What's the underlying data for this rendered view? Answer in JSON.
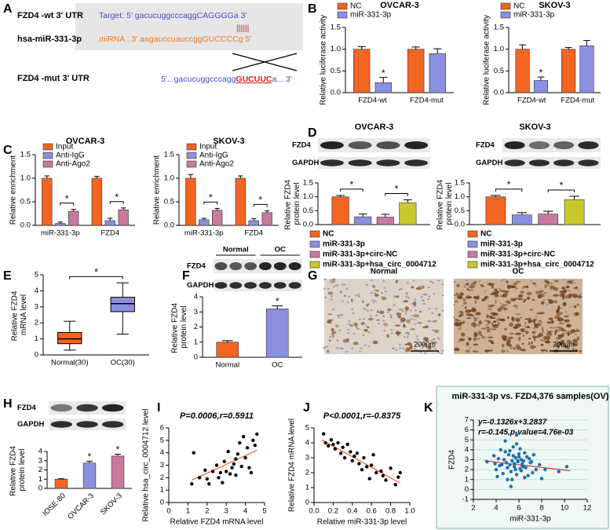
{
  "letters": [
    "A",
    "B",
    "C",
    "D",
    "E",
    "F",
    "G",
    "H",
    "I",
    "J",
    "K"
  ],
  "panel_a": {
    "labels": [
      "FZD4 -wt   3' UTR",
      "hsa-miR-331-3p",
      "FZD4 -mut  3' UTR"
    ],
    "target": "Target: 5'  gacucuggcccaggCAGGGGa 3'",
    "pairing": "||||||",
    "mirna": "miRNA : 3'  aagauccuauccggGUCCCCg 5'",
    "mut_prefix": "5'...gacucuggcccagg",
    "mut_red": "GUCUUC",
    "mut_suffix": "a... 3'"
  },
  "blots": [
    {
      "rows": [
        "FZD4",
        "GAPDH"
      ]
    },
    {
      "rows": [
        "FZD4",
        "GAPDH"
      ]
    },
    {
      "rows": [
        "FZD4",
        "GAPDH"
      ],
      "groups": [
        "Normal",
        "OC"
      ]
    },
    {
      "rows": [
        "FZD4",
        "GAPDH"
      ]
    }
  ],
  "ihc": {
    "labels": [
      "Normal",
      "OC"
    ],
    "scale": "200μm"
  },
  "chart_data": [
    {
      "type": "bar",
      "title": "OVCAR-3",
      "ylabel": "Relative luciferase activity",
      "categories": [
        "FZD4-wt",
        "FZD4-mut"
      ],
      "series": [
        {
          "name": "NC",
          "color": "#f26522",
          "values": [
            1.0,
            1.0
          ],
          "errors": [
            0.06,
            0.05
          ]
        },
        {
          "name": "miR-331-3p",
          "color": "#8b8fe0",
          "values": [
            0.23,
            0.9
          ],
          "errors": [
            0.12,
            0.11
          ]
        }
      ],
      "ylim": [
        0,
        1.5
      ],
      "yticks": [
        {
          "value": 0,
          "label": "0.0"
        },
        0.5,
        {
          "value": 1,
          "label": "1.0"
        },
        1.5
      ],
      "legend": "upper left",
      "stars": [
        {
          "label": "*",
          "series": 1,
          "category": 0
        }
      ]
    },
    {
      "type": "bar",
      "title": "SKOV-3",
      "ylabel": "Relative luciferase activity",
      "categories": [
        "FZD4-wt",
        "FZD4-mut"
      ],
      "series": [
        {
          "name": "NC",
          "color": "#f26522",
          "values": [
            1.0,
            1.0
          ],
          "errors": [
            0.1,
            0.04
          ]
        },
        {
          "name": "miR-331-3p",
          "color": "#8b8fe0",
          "values": [
            0.28,
            1.08
          ],
          "errors": [
            0.08,
            0.12
          ]
        }
      ],
      "ylim": [
        0,
        1.5
      ],
      "yticks": [
        {
          "value": 0,
          "label": "0.0"
        },
        0.5,
        {
          "value": 1,
          "label": "1.0"
        },
        1.5
      ],
      "legend": "upper left",
      "stars": [
        {
          "label": "*",
          "series": 1,
          "category": 0
        }
      ]
    },
    {
      "type": "bar",
      "title": "OVCAR-3",
      "ylabel": "Relative enrichment",
      "categories": [
        "miR-331-3p",
        "FZD4"
      ],
      "series": [
        {
          "name": "Input",
          "color": "#f26522",
          "values": [
            1.0,
            1.0
          ],
          "errors": [
            0.05,
            0.04
          ]
        },
        {
          "name": "Anti-IgG",
          "color": "#8b8fe0",
          "values": [
            0.04,
            0.1
          ],
          "errors": [
            0.03,
            0.05
          ]
        },
        {
          "name": "Anti-Ago2",
          "color": "#c7799e",
          "values": [
            0.3,
            0.33
          ],
          "errors": [
            0.04,
            0.04
          ]
        }
      ],
      "ylim": [
        0,
        1.5
      ],
      "yticks": [
        {
          "value": 0,
          "label": "0.0"
        },
        0.5,
        {
          "value": 1,
          "label": "1.0"
        },
        1.5
      ],
      "legend": "upper left",
      "brackets": [
        {
          "label": "*",
          "from": [
            1,
            0
          ],
          "to": [
            2,
            0
          ]
        },
        {
          "label": "*",
          "from": [
            1,
            1
          ],
          "to": [
            2,
            1
          ]
        }
      ]
    },
    {
      "type": "bar",
      "title": "SKOV-3",
      "ylabel": "Relative enrichment",
      "categories": [
        "miR-331-3p",
        "FZD4"
      ],
      "series": [
        {
          "name": "Input",
          "color": "#f26522",
          "values": [
            1.0,
            1.0
          ],
          "errors": [
            0.08,
            0.05
          ]
        },
        {
          "name": "Anti-IgG",
          "color": "#8b8fe0",
          "values": [
            0.12,
            0.1
          ],
          "errors": [
            0.03,
            0.04
          ]
        },
        {
          "name": "Anti-Ago2",
          "color": "#c7799e",
          "values": [
            0.32,
            0.27
          ],
          "errors": [
            0.04,
            0.04
          ]
        }
      ],
      "ylim": [
        0,
        1.5
      ],
      "yticks": [
        {
          "value": 0,
          "label": "0.0"
        },
        0.5,
        {
          "value": 1,
          "label": "1.0"
        },
        1.5
      ],
      "legend": "upper left",
      "brackets": [
        {
          "label": "*",
          "from": [
            1,
            0
          ],
          "to": [
            2,
            0
          ]
        },
        {
          "label": "*",
          "from": [
            1,
            1
          ],
          "to": [
            2,
            1
          ]
        }
      ]
    },
    {
      "type": "bar",
      "title": "OVCAR-3",
      "ylabel": "Relative FZD4 protein level",
      "categories": [
        null
      ],
      "series": [
        {
          "name": "NC",
          "color": "#f26522",
          "values": [
            1.0
          ],
          "errors": [
            0.05
          ]
        },
        {
          "name": "miR-331-3p",
          "color": "#8b8fe0",
          "values": [
            0.28
          ],
          "errors": [
            0.1
          ]
        },
        {
          "name": "miR-331-3p+circ-NC",
          "color": "#c7799e",
          "values": [
            0.27
          ],
          "errors": [
            0.1
          ]
        },
        {
          "name": "miR-331-3p+hsa_circ_0004712",
          "color": "#c9c92e",
          "values": [
            0.79
          ],
          "errors": [
            0.1
          ]
        }
      ],
      "ylim": [
        0,
        1.5
      ],
      "yticks": [
        {
          "value": 0,
          "label": "0.0"
        },
        0.5,
        {
          "value": 1,
          "label": "1.0"
        },
        1.5
      ],
      "legend": "bottom",
      "brackets": [
        {
          "label": "*",
          "from": [
            0,
            0
          ],
          "to": [
            1,
            0
          ]
        },
        {
          "label": "*",
          "from": [
            2,
            0
          ],
          "to": [
            3,
            0
          ]
        }
      ]
    },
    {
      "type": "bar",
      "title": "SKOV-3",
      "ylabel": "Relative FZD4 protein level",
      "categories": [
        null
      ],
      "series": [
        {
          "name": "NC",
          "color": "#f26522",
          "values": [
            1.0
          ],
          "errors": [
            0.05
          ]
        },
        {
          "name": "miR-331-3p",
          "color": "#8b8fe0",
          "values": [
            0.35
          ],
          "errors": [
            0.08
          ]
        },
        {
          "name": "miR-331-3p+circ-NC",
          "color": "#c7799e",
          "values": [
            0.38
          ],
          "errors": [
            0.1
          ]
        },
        {
          "name": "miR-331-3p+hsa_circ_0004712",
          "color": "#c9c92e",
          "values": [
            0.9
          ],
          "errors": [
            0.12
          ]
        }
      ],
      "ylim": [
        0,
        1.5
      ],
      "yticks": [
        {
          "value": 0,
          "label": "0.0"
        },
        0.5,
        {
          "value": 1,
          "label": "1.0"
        },
        1.5
      ],
      "legend": "bottom",
      "brackets": [
        {
          "label": "*",
          "from": [
            0,
            0
          ],
          "to": [
            1,
            0
          ]
        },
        {
          "label": "*",
          "from": [
            2,
            0
          ],
          "to": [
            3,
            0
          ]
        }
      ]
    },
    {
      "type": "box",
      "ylabel": "Relative FZD4 mRNA level",
      "categories": [
        "Normal(30)",
        "OC(30)"
      ],
      "colors": [
        "#f26522",
        "#8b8fe0"
      ],
      "boxes": [
        {
          "min": 0.3,
          "q1": 0.7,
          "median": 1.0,
          "q3": 1.4,
          "max": 2.1
        },
        {
          "min": 1.3,
          "q1": 2.7,
          "median": 3.2,
          "q3": 3.6,
          "max": 4.5
        }
      ],
      "ylim": [
        0,
        5
      ],
      "yticks": [
        0,
        1,
        2,
        3,
        4,
        5
      ],
      "brackets": [
        {
          "label": "*",
          "from": 0,
          "to": 1
        }
      ]
    },
    {
      "type": "bar",
      "ylabel": "Relative FZD4 protein level",
      "categories": [
        "Normal",
        "OC"
      ],
      "values": [
        1.0,
        3.2
      ],
      "errors": [
        0.1,
        0.2
      ],
      "colors": [
        "#f26522",
        "#8b8fe0"
      ],
      "ylim": [
        0,
        4
      ],
      "yticks": [
        0,
        1,
        2,
        3,
        4
      ],
      "stars": [
        {
          "label": "*",
          "category": 1
        }
      ]
    },
    {
      "type": "bar",
      "ylabel": "Relative FZD4 protein level",
      "categories": [
        "IOSE-80",
        "OVCAR-3",
        "SKOV-3"
      ],
      "values": [
        1.0,
        2.75,
        3.5
      ],
      "errors": [
        0.05,
        0.2,
        0.2
      ],
      "colors": [
        "#f26522",
        "#8b8fe0",
        "#c7799e"
      ],
      "ylim": [
        0,
        4
      ],
      "yticks": [
        0,
        1,
        2,
        3,
        4
      ],
      "stars": [
        {
          "label": "*",
          "category": 1
        },
        {
          "label": "*",
          "category": 2
        }
      ]
    },
    {
      "type": "scatter",
      "title": "P=0.0006,r=0.5911",
      "xlabel": "Relative FZD4 mRNA level",
      "ylabel": "Relative hsa_circ_0004712 level",
      "x": [
        1.2,
        1.3,
        1.6,
        1.9,
        2.0,
        2.1,
        2.3,
        2.5,
        2.6,
        2.7,
        2.9,
        3.0,
        3.1,
        3.2,
        3.3,
        3.4,
        3.5,
        3.5,
        3.6,
        3.7,
        3.8,
        3.9,
        4.0,
        4.1,
        4.2,
        4.3,
        4.4,
        4.5,
        4.6,
        2.8
      ],
      "y": [
        1.5,
        4.0,
        2.0,
        2.6,
        1.9,
        1.5,
        2.5,
        3.0,
        2.0,
        2.4,
        3.3,
        2.5,
        4.1,
        2.3,
        2.8,
        3.1,
        3.5,
        2.2,
        3.9,
        4.8,
        2.9,
        5.3,
        3.6,
        4.4,
        2.8,
        2.4,
        5.0,
        4.6,
        5.5,
        1.6
      ],
      "color": "#000000",
      "fit": {
        "x": [
          1.2,
          4.6
        ],
        "y": [
          1.8,
          4.2
        ],
        "color": "#f26522"
      },
      "xlim": [
        0,
        5
      ],
      "xticks": [
        0,
        1,
        2,
        3,
        4,
        5
      ],
      "ylim": [
        0,
        6
      ],
      "yticks": [
        0,
        1,
        2,
        3,
        4,
        5,
        6
      ]
    },
    {
      "type": "scatter",
      "title": "P<0.0001,r=-0.8375",
      "xlabel": "Relative miR-331-3p level",
      "ylabel": "Relative FZD4 mRNA level",
      "x": [
        0.1,
        0.12,
        0.15,
        0.18,
        0.2,
        0.22,
        0.25,
        0.28,
        0.3,
        0.32,
        0.35,
        0.38,
        0.4,
        0.42,
        0.45,
        0.47,
        0.5,
        0.52,
        0.55,
        0.58,
        0.6,
        0.62,
        0.65,
        0.7,
        0.72,
        0.75,
        0.8,
        0.85,
        0.88,
        0.9
      ],
      "y": [
        4.6,
        4.0,
        3.8,
        4.2,
        3.9,
        3.6,
        4.0,
        3.3,
        3.7,
        3.0,
        3.9,
        3.4,
        2.8,
        3.1,
        3.3,
        2.6,
        2.2,
        3.0,
        2.4,
        1.6,
        2.5,
        3.2,
        2.0,
        2.1,
        1.8,
        1.5,
        2.3,
        1.2,
        1.7,
        2.0
      ],
      "color": "#000000",
      "fit": {
        "x": [
          0.08,
          0.9
        ],
        "y": [
          4.2,
          1.3
        ],
        "color": "#f26522"
      },
      "xlim": [
        0,
        1
      ],
      "xticks": [
        {
          "value": 0,
          "label": "0.0"
        },
        0.2,
        0.4,
        0.6,
        0.8,
        {
          "value": 1,
          "label": "1.0"
        }
      ],
      "ylim": [
        0,
        5
      ],
      "yticks": [
        0,
        1,
        2,
        3,
        4,
        5
      ]
    },
    {
      "type": "scatter",
      "title": "miR-331-3p vs. FZD4,376 samples(OV)",
      "xlabel": "miR-331-3p",
      "ylabel": "FZD4",
      "annotations": [
        "y=-0.1326x+3.2837",
        "r=-0.145,p-value=4.76e-03"
      ],
      "x": [
        4.2,
        4.5,
        4.8,
        5.0,
        5.1,
        5.3,
        5.4,
        5.5,
        5.6,
        5.7,
        5.8,
        5.9,
        6.0,
        6.1,
        6.2,
        6.3,
        6.5,
        6.7,
        7.0,
        7.5,
        3.2,
        3.8,
        4.0,
        4.4,
        4.6,
        4.9,
        5.2,
        5.4,
        5.6,
        5.8,
        6.0,
        6.2,
        6.4,
        6.6,
        6.9,
        7.2,
        7.8,
        8.3,
        9.5,
        10.2,
        4.3,
        4.7,
        5.0,
        5.2,
        5.5,
        5.7,
        5.9,
        6.1,
        6.3,
        6.5,
        6.8,
        7.1,
        4.1,
        5.3,
        5.8,
        6.4,
        3.9,
        7.3,
        8.0,
        4.8
      ],
      "y": [
        3.1,
        2.5,
        3.8,
        2.2,
        3.5,
        1.8,
        2.9,
        4.3,
        2.6,
        3.2,
        1.5,
        2.8,
        3.6,
        2.1,
        3.0,
        2.4,
        1.2,
        3.3,
        2.7,
        2.0,
        2.8,
        3.4,
        2.0,
        4.0,
        1.6,
        2.7,
        3.9,
        1.0,
        2.3,
        4.6,
        3.3,
        1.9,
        2.9,
        2.2,
        3.1,
        1.7,
        2.5,
        2.0,
        1.8,
        2.3,
        2.4,
        3.0,
        1.0,
        2.5,
        3.4,
        2.0,
        2.9,
        4.1,
        2.6,
        3.7,
        1.4,
        2.8,
        1.3,
        0.3,
        5.5,
        2.3,
        2.6,
        3.5,
        1.1,
        4.9
      ],
      "color": "#1f6fae",
      "fit": {
        "x": [
          3,
          10.5
        ],
        "y": [
          2.89,
          1.89
        ],
        "color": "#e0352b"
      },
      "xlim": [
        2,
        12
      ],
      "xticks": [
        2,
        4,
        6,
        8,
        10,
        12
      ],
      "ylim": [
        -1,
        7
      ],
      "yticks": [
        -1,
        0,
        1,
        2,
        3,
        4,
        5,
        6,
        7
      ],
      "grid": true
    }
  ]
}
